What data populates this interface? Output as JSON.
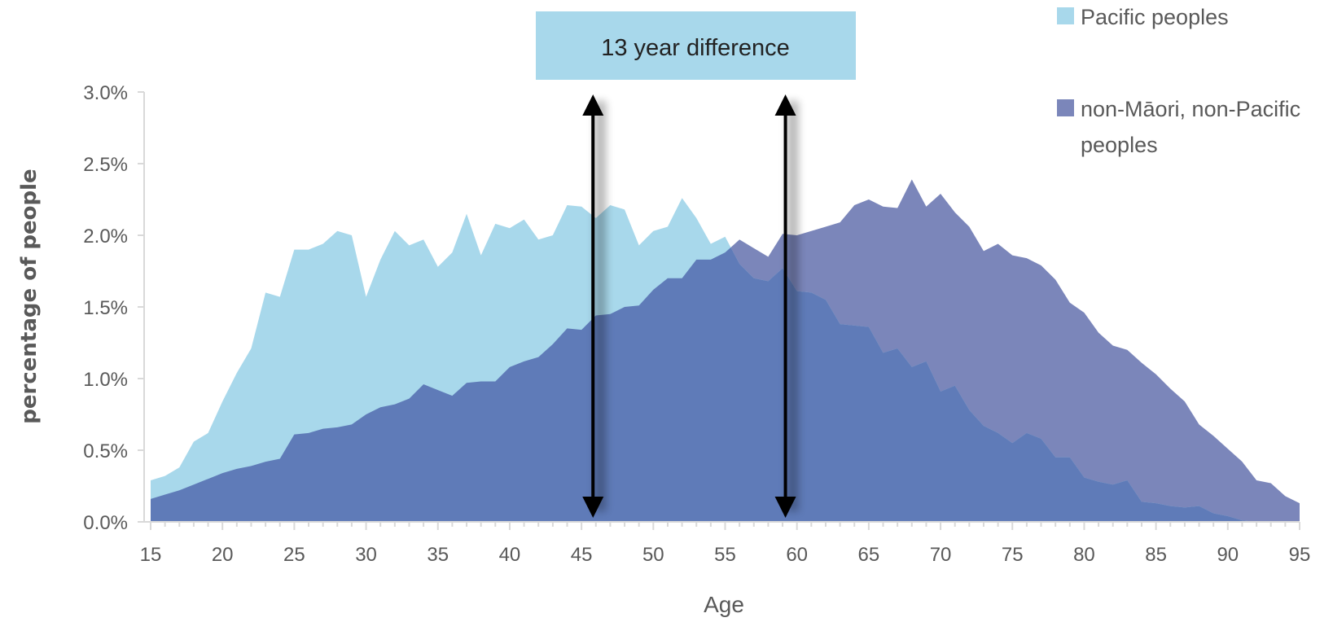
{
  "chart_data": {
    "type": "area",
    "xlabel": "Age",
    "ylabel": "percentage of people",
    "xlim": [
      15,
      95
    ],
    "ylim": [
      0,
      0.03
    ],
    "x_ticks": [
      "15",
      "20",
      "25",
      "30",
      "35",
      "40",
      "45",
      "50",
      "55",
      "60",
      "65",
      "70",
      "75",
      "80",
      "85",
      "90",
      "95"
    ],
    "y_ticks": [
      "0.0%",
      "0.5%",
      "1.0%",
      "1.5%",
      "2.0%",
      "2.5%",
      "3.0%"
    ],
    "grid": false,
    "legend_position": "top-right",
    "x": [
      15,
      16,
      17,
      18,
      19,
      20,
      21,
      22,
      23,
      24,
      25,
      26,
      27,
      28,
      29,
      30,
      31,
      32,
      33,
      34,
      35,
      36,
      37,
      38,
      39,
      40,
      41,
      42,
      43,
      44,
      45,
      46,
      47,
      48,
      49,
      50,
      51,
      52,
      53,
      54,
      55,
      56,
      57,
      58,
      59,
      60,
      61,
      62,
      63,
      64,
      65,
      66,
      67,
      68,
      69,
      70,
      71,
      72,
      73,
      74,
      75,
      76,
      77,
      78,
      79,
      80,
      81,
      82,
      83,
      84,
      85,
      86,
      87,
      88,
      89,
      90,
      91,
      92,
      93,
      94,
      95
    ],
    "series": [
      {
        "name": "non-Māori, non-Pacific peoples",
        "color": "#7b86ba",
        "values": [
          0.0016,
          0.0019,
          0.0022,
          0.0026,
          0.003,
          0.0034,
          0.0037,
          0.0039,
          0.0042,
          0.0044,
          0.0061,
          0.0062,
          0.0065,
          0.0066,
          0.0068,
          0.0075,
          0.008,
          0.0082,
          0.0086,
          0.0096,
          0.0092,
          0.0088,
          0.0097,
          0.0098,
          0.0098,
          0.0108,
          0.0112,
          0.0115,
          0.0124,
          0.0135,
          0.0134,
          0.0144,
          0.0145,
          0.015,
          0.0151,
          0.0162,
          0.017,
          0.017,
          0.0183,
          0.0183,
          0.0188,
          0.0197,
          0.0191,
          0.0185,
          0.0201,
          0.02,
          0.0203,
          0.0206,
          0.0209,
          0.0221,
          0.0225,
          0.022,
          0.0219,
          0.0239,
          0.022,
          0.0229,
          0.0216,
          0.0206,
          0.0189,
          0.0194,
          0.0186,
          0.0184,
          0.0179,
          0.0169,
          0.0153,
          0.0146,
          0.0132,
          0.0123,
          0.012,
          0.0111,
          0.0103,
          0.0093,
          0.0084,
          0.0068,
          0.006,
          0.0051,
          0.0042,
          0.0029,
          0.0027,
          0.0018,
          0.0013
        ]
      },
      {
        "name": "Pacific peoples",
        "color": "#a8d8eb",
        "values": [
          0.0029,
          0.0032,
          0.0038,
          0.0056,
          0.0062,
          0.0084,
          0.0104,
          0.0121,
          0.016,
          0.0157,
          0.019,
          0.019,
          0.0194,
          0.0203,
          0.02,
          0.0157,
          0.0183,
          0.0203,
          0.0193,
          0.0197,
          0.0178,
          0.0188,
          0.0215,
          0.0186,
          0.0208,
          0.0205,
          0.0211,
          0.0197,
          0.02,
          0.0221,
          0.022,
          0.0212,
          0.0221,
          0.0218,
          0.0193,
          0.0203,
          0.0206,
          0.0226,
          0.0212,
          0.0194,
          0.0199,
          0.018,
          0.017,
          0.0168,
          0.0177,
          0.0161,
          0.016,
          0.0155,
          0.0138,
          0.0137,
          0.0136,
          0.0118,
          0.0121,
          0.0108,
          0.0112,
          0.0091,
          0.0095,
          0.0078,
          0.0067,
          0.0062,
          0.0055,
          0.0062,
          0.0058,
          0.0045,
          0.0045,
          0.0031,
          0.0028,
          0.0026,
          0.0029,
          0.0014,
          0.0013,
          0.0011,
          0.001,
          0.0011,
          0.0006,
          0.0004,
          0.0001,
          0.0,
          0.0,
          0.0,
          0.0
        ]
      }
    ],
    "overlap_color": "#5f7bb8",
    "annotation": {
      "text": "13 year difference",
      "box_color": "#a8d8eb",
      "arrow_x": [
        45.8,
        59.2
      ]
    }
  },
  "legend": [
    {
      "label": "Pacific peoples",
      "color": "#a8d8eb"
    },
    {
      "label_line1": "non-Māori, non-Pacific",
      "label_line2": "peoples",
      "color": "#7b86ba"
    }
  ]
}
